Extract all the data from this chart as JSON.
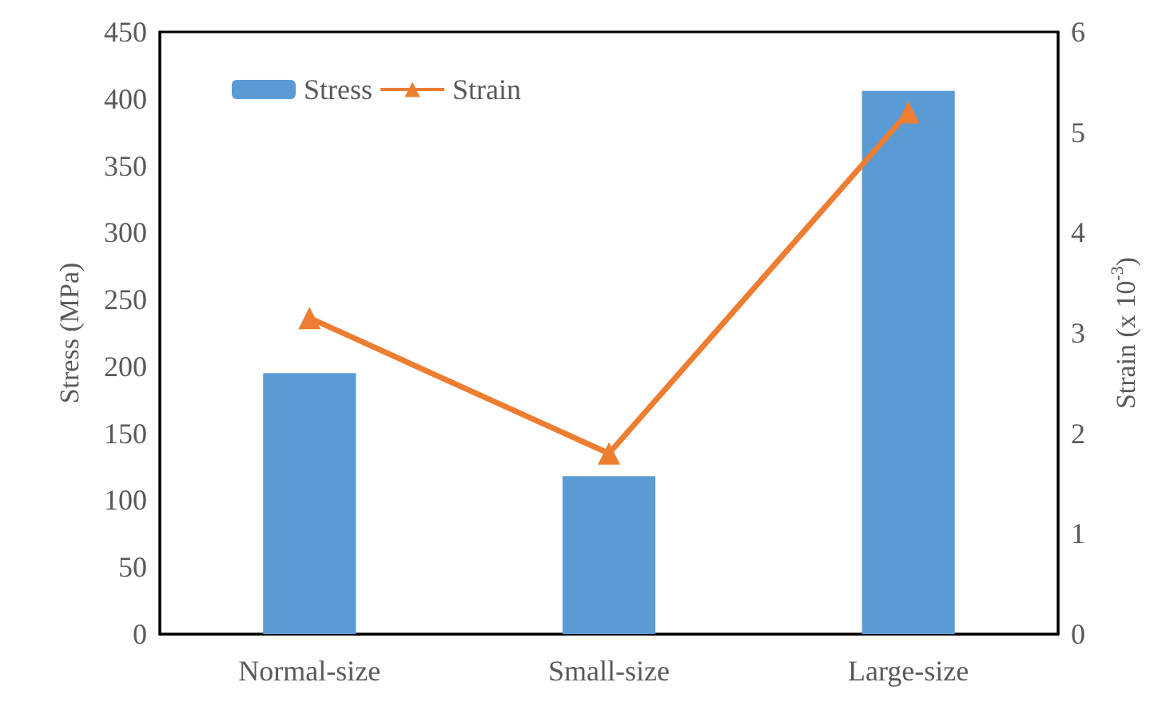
{
  "chart_data": {
    "type": "bar",
    "categories": [
      "Normal-size",
      "Small-size",
      "Large-size"
    ],
    "series": [
      {
        "name": "Stress",
        "color": "#5b9bd5",
        "values": [
          195,
          118,
          406
        ]
      },
      {
        "name": "Strain",
        "type": "line",
        "axis": "y2",
        "color": "#ed7d31",
        "marker": "triangle",
        "values": [
          3.15,
          1.8,
          5.2
        ]
      }
    ],
    "ylabel": "Stress (MPa)",
    "y2label": "Strain (x 10$^{-3}$)",
    "ylim": [
      0,
      450
    ],
    "yticks": [
      0,
      50,
      100,
      150,
      200,
      250,
      300,
      350,
      400,
      450
    ],
    "y2lim": [
      0,
      6
    ],
    "y2ticks": [
      0,
      1,
      2,
      3,
      4,
      5,
      6
    ],
    "grid": false,
    "legend": "top left"
  }
}
